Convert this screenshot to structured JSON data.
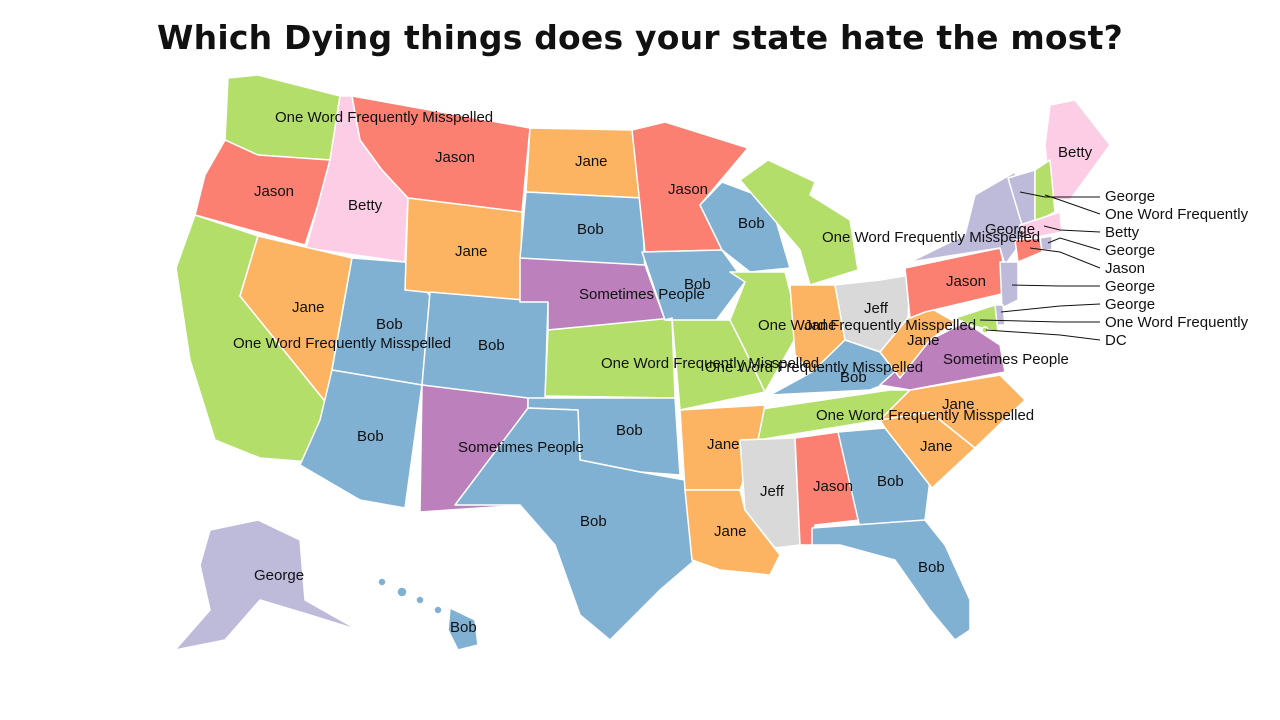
{
  "title": "Which Dying things does your state hate the most?",
  "colors": {
    "Bob": "#80b1d3",
    "Jane": "#fdb462",
    "Jason": "#fb8072",
    "Betty": "#fccde5",
    "George": "#bebada",
    "Jeff": "#d9d9d9",
    "Sometimes People": "#bc80bd",
    "One Word Frequently Misspelled": "#b3de69"
  },
  "state_labels": {
    "WA": "One Word Frequently Misspelled",
    "OR": "Jason",
    "ID": "Betty",
    "MT": "Jason",
    "ND": "Jane",
    "MN": "Jason",
    "WY": "Jane",
    "SD": "Bob",
    "WI": "Bob",
    "MI": "One Word Frequently Misspelled",
    "ME": "Betty",
    "NY": "George",
    "PA": "Jason",
    "CA": "One Word Frequently Misspelled",
    "NV": "Jane",
    "UT": "Bob",
    "CO": "Bob",
    "NE": "Sometimes People",
    "IA": "Bob",
    "IL": "One Word Frequently Misspelled",
    "IN": "Jane",
    "OH": "Jeff",
    "WV": "Jane",
    "VA": "Sometimes People",
    "KS": "One Word Frequently Misspelled",
    "MO": "One Word Frequently Misspelled",
    "KY": "Bob",
    "TN": "One Word Frequently Misspelled",
    "NC": "Jane",
    "AZ": "Bob",
    "NM": "Sometimes People",
    "OK": "Bob",
    "AR": "Jane",
    "SC": "Jane",
    "TX": "Bob",
    "LA": "Jane",
    "MS": "Jeff",
    "AL": "Jason",
    "GA": "Bob",
    "FL": "Bob",
    "AK": "George",
    "HI": "Bob"
  },
  "callouts": [
    "George",
    "One Word Frequently",
    "Betty",
    "George",
    "Jason",
    "George",
    "George",
    "One Word Frequently",
    "DC"
  ]
}
